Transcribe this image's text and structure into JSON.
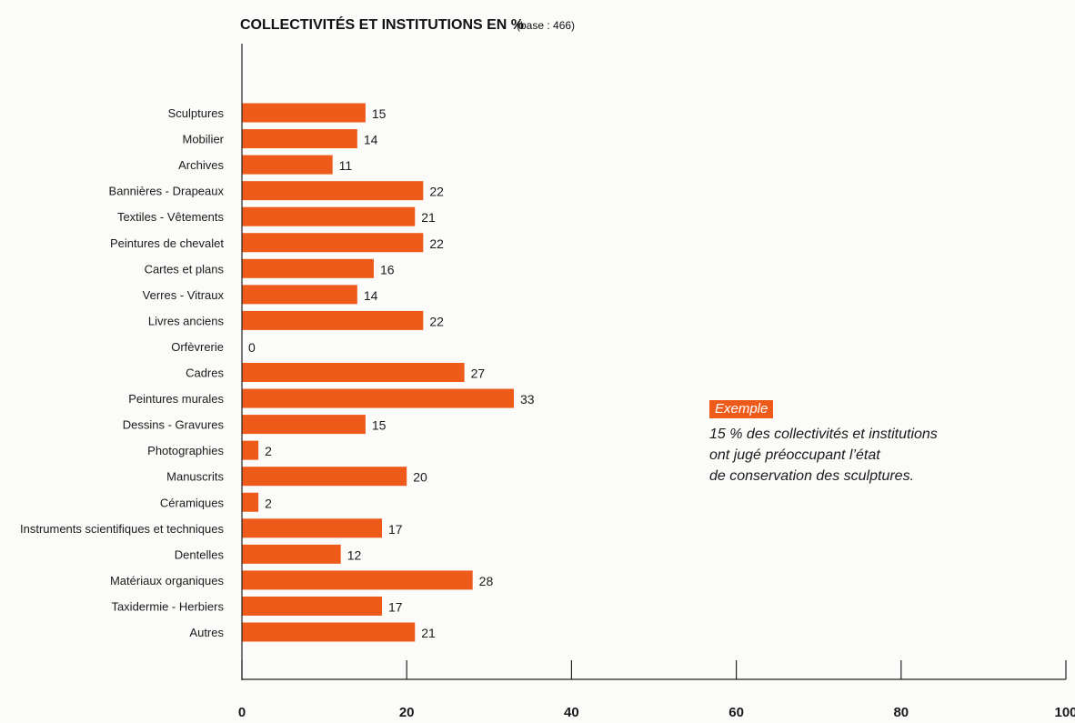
{
  "chart_data": {
    "type": "bar",
    "orientation": "horizontal",
    "title": "COLLECTIVITÉS ET INSTITUTIONS EN %",
    "subtitle": "(base : 466)",
    "categories": [
      "Sculptures",
      "Mobilier",
      "Archives",
      "Bannières - Drapeaux",
      "Textiles - Vêtements",
      "Peintures de chevalet",
      "Cartes et plans",
      "Verres - Vitraux",
      "Livres anciens",
      "Orfèvrerie",
      "Cadres",
      "Peintures murales",
      "Dessins - Gravures",
      "Photographies",
      "Manuscrits",
      "Céramiques",
      "Instruments scientifiques et techniques",
      "Dentelles",
      "Matériaux organiques",
      "Taxidermie - Herbiers",
      "Autres"
    ],
    "values": [
      15,
      14,
      11,
      22,
      21,
      22,
      16,
      14,
      22,
      0,
      27,
      33,
      15,
      2,
      20,
      2,
      17,
      12,
      28,
      17,
      21
    ],
    "xlim": [
      0,
      100
    ],
    "xticks": [
      0,
      20,
      40,
      60,
      80,
      100
    ],
    "grid": false,
    "bar_color": "#ee5a1a"
  },
  "example": {
    "tag": "Exemple",
    "lines": [
      "15 % des collectivités et institutions",
      "ont jugé préoccupant l’état",
      "de conservation des sculptures."
    ]
  }
}
